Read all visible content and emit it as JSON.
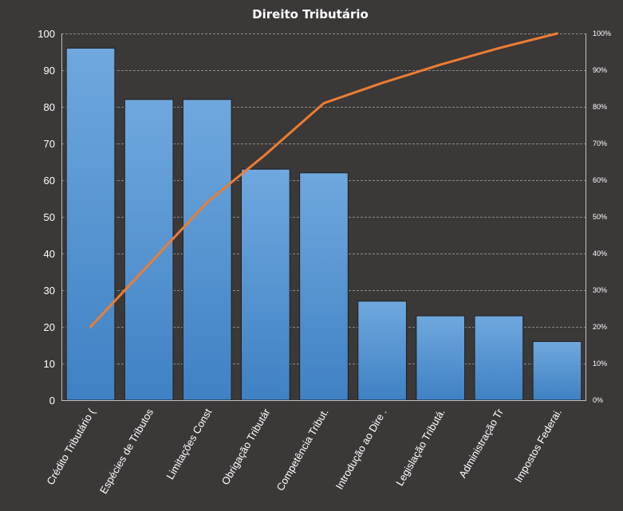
{
  "chart_data": {
    "type": "bar",
    "title": "Direito  Tributário",
    "categories": [
      "Crédito Tributário (",
      "Espécies de Tributos",
      "Limitações Const",
      "Obrigação Tributár",
      "Competência Tribut.",
      "Introdução ao Dire .",
      "Legislação Tributá.",
      "Administração Tr",
      "Impostos Federai."
    ],
    "series": [
      {
        "type": "bar",
        "values": [
          96,
          82,
          82,
          63,
          62,
          27,
          23,
          23,
          16
        ],
        "color": "#5b9bd5"
      },
      {
        "type": "line",
        "axis": "secondary",
        "values": [
          20,
          37,
          54,
          67,
          81,
          86.5,
          91.5,
          96,
          100
        ],
        "color": "#ed7d31"
      }
    ],
    "ylim": [
      0,
      100
    ],
    "yticks": [
      "0",
      "10",
      "20",
      "30",
      "40",
      "50",
      "60",
      "70",
      "80",
      "90",
      "100"
    ],
    "y2lim": [
      0,
      100
    ],
    "y2ticks": [
      "0%",
      "10%",
      "20%",
      "30%",
      "40%",
      "50%",
      "60%",
      "70%",
      "80%",
      "90%",
      "100%"
    ],
    "grid": true,
    "legend": "none",
    "xlabel": "",
    "ylabel": ""
  }
}
